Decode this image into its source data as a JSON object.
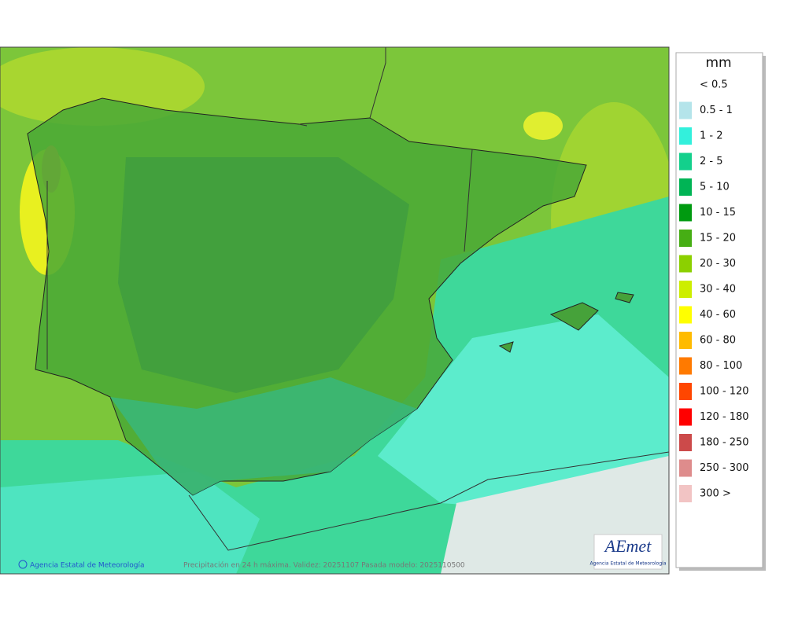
{
  "legend": {
    "unit": "mm",
    "items": [
      {
        "label": "< 0.5",
        "color": "#ffffff"
      },
      {
        "label": "0.5 - 1",
        "color": "#b4e4ea"
      },
      {
        "label": "1 - 2",
        "color": "#33f0dc"
      },
      {
        "label": "2 - 5",
        "color": "#13d08c"
      },
      {
        "label": "5 - 10",
        "color": "#00b455"
      },
      {
        "label": "10 - 15",
        "color": "#009a10"
      },
      {
        "label": "15 - 20",
        "color": "#46ae14"
      },
      {
        "label": "20 - 30",
        "color": "#8cd000"
      },
      {
        "label": "30 - 40",
        "color": "#cdee00"
      },
      {
        "label": "40 - 60",
        "color": "#ffff00"
      },
      {
        "label": "60 - 80",
        "color": "#ffbb00"
      },
      {
        "label": "80 - 100",
        "color": "#ff7a00"
      },
      {
        "label": "100 - 120",
        "color": "#ff4600"
      },
      {
        "label": "120 - 180",
        "color": "#ff0000"
      },
      {
        "label": "180 - 250",
        "color": "#cc4a4a"
      },
      {
        "label": "250 - 300",
        "color": "#de8c8c"
      },
      {
        "label": "300 >",
        "color": "#f2c4c4"
      }
    ]
  },
  "footer": {
    "credit": "Agencia Estatal de Meteorología",
    "caption": "Precipitación en 24 h máxima. Validez: 20251107 Pasada modelo: 2025110500"
  },
  "logo": {
    "name": "AEmet",
    "subtitle": "Agencia Estatal de Meteorología"
  }
}
